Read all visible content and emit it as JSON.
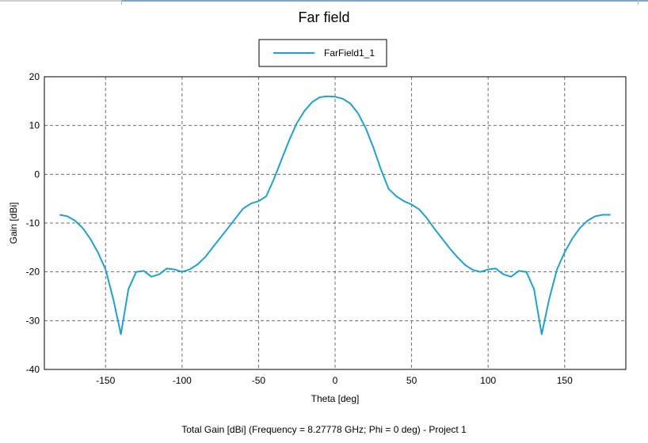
{
  "chart_data": {
    "type": "line",
    "title": "Far field",
    "xlabel": "Theta [deg]",
    "ylabel": "Gain [dBi]",
    "footer": "Total Gain [dBi] (Frequency = 8.27778 GHz; Phi = 0 deg) - Project 1",
    "xlim": [
      -190,
      190
    ],
    "ylim": [
      -40,
      20
    ],
    "xticks": [
      -150,
      -100,
      -50,
      0,
      50,
      100,
      150
    ],
    "yticks": [
      -40,
      -30,
      -20,
      -10,
      0,
      10,
      20
    ],
    "grid": true,
    "grid_style": "dashed",
    "legend_position": "top-center",
    "series": [
      {
        "name": "FarField1_1",
        "color": "#1ba3d6",
        "x": [
          -180,
          -175,
          -170,
          -165,
          -160,
          -155,
          -150,
          -145,
          -140,
          -135,
          -130,
          -125,
          -120,
          -115,
          -110,
          -105,
          -100,
          -95,
          -90,
          -85,
          -80,
          -75,
          -70,
          -65,
          -60,
          -55,
          -50,
          -45,
          -40,
          -35,
          -30,
          -25,
          -20,
          -15,
          -10,
          -5,
          0,
          5,
          10,
          15,
          20,
          25,
          30,
          35,
          40,
          45,
          50,
          55,
          60,
          65,
          70,
          75,
          80,
          85,
          90,
          95,
          100,
          105,
          110,
          115,
          120,
          125,
          130,
          135,
          140,
          145,
          150,
          155,
          160,
          165,
          170,
          175,
          180
        ],
        "y": [
          -8.3,
          -8.6,
          -9.5,
          -11.0,
          -13.2,
          -16.0,
          -19.5,
          -25.5,
          -32.8,
          -23.5,
          -20.0,
          -19.8,
          -21.0,
          -20.5,
          -19.3,
          -19.5,
          -20.0,
          -19.5,
          -18.5,
          -17.0,
          -15.0,
          -13.0,
          -11.0,
          -9.0,
          -7.0,
          -6.0,
          -5.5,
          -4.5,
          -1.0,
          3.0,
          7.0,
          10.5,
          13.0,
          14.8,
          15.8,
          16.0,
          15.9,
          15.5,
          14.5,
          12.5,
          9.5,
          5.5,
          1.0,
          -3.0,
          -4.5,
          -5.5,
          -6.2,
          -7.2,
          -9.0,
          -11.2,
          -13.2,
          -15.2,
          -17.0,
          -18.6,
          -19.6,
          -20.0,
          -19.5,
          -19.3,
          -20.5,
          -21.0,
          -19.8,
          -20.0,
          -23.5,
          -32.8,
          -25.5,
          -19.5,
          -16.0,
          -13.2,
          -11.0,
          -9.5,
          -8.6,
          -8.3,
          -8.3
        ]
      }
    ]
  }
}
